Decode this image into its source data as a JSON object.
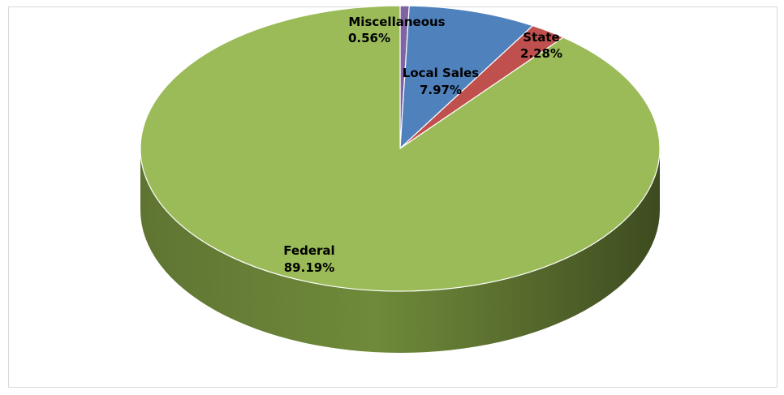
{
  "chart_data": {
    "type": "pie",
    "title": "",
    "three_d": true,
    "start_angle_deg": 0,
    "slices": [
      {
        "label": "Miscellaneous",
        "value": 0.56,
        "value_text": "0.56%",
        "color": "#8064a2"
      },
      {
        "label": "Local Sales",
        "value": 7.97,
        "value_text": "7.97%",
        "color": "#4f81bd"
      },
      {
        "label": "State",
        "value": 2.28,
        "value_text": "2.28%",
        "color": "#c0504d"
      },
      {
        "label": "Federal",
        "value": 89.19,
        "value_text": "89.19%",
        "color": "#9bbb59"
      }
    ]
  }
}
